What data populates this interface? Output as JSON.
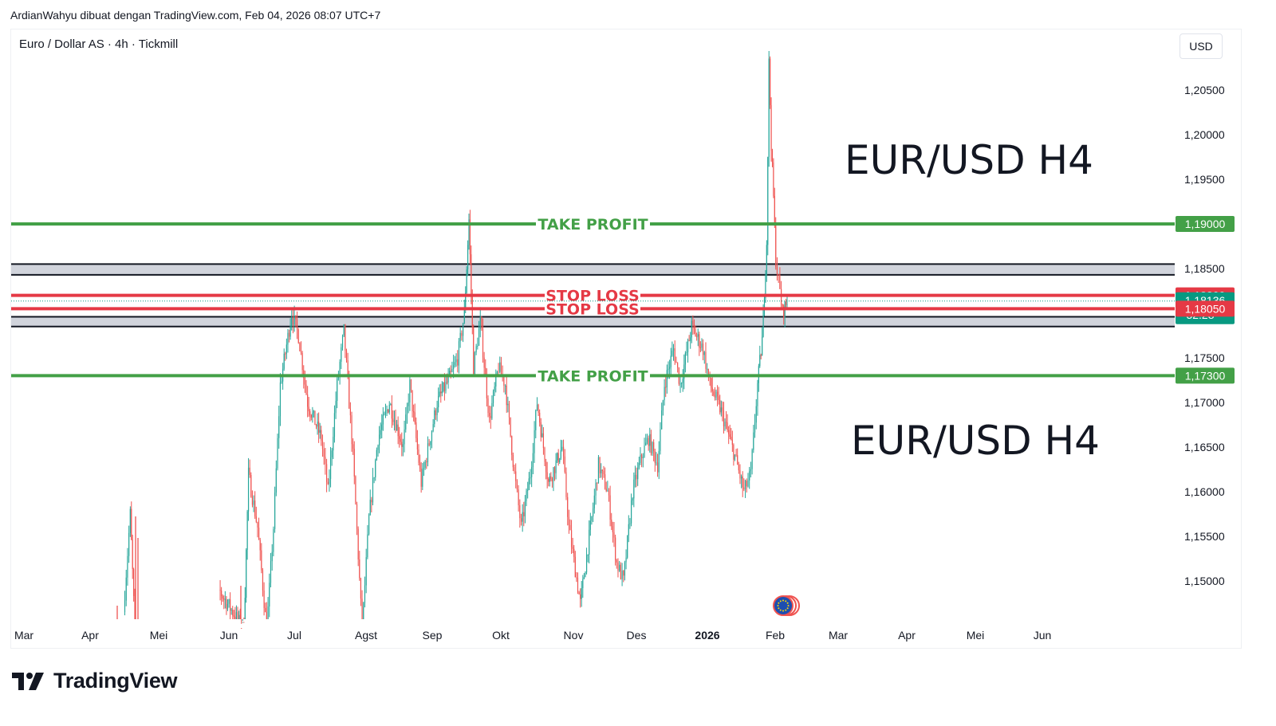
{
  "header": {
    "attribution": "ArdianWahyu dibuat dengan TradingView.com, Feb 04, 2026 08:07 UTC+7",
    "symbol": "Euro / Dollar AS · 4h · Tickmill",
    "currency": "USD"
  },
  "brand": {
    "name": "TradingView",
    "icon": "tradingview-logo-icon"
  },
  "colors": {
    "green": "#43a047",
    "red": "#e53945",
    "up": "#26a69a",
    "down": "#ef5350",
    "zone": "#d1d4dc",
    "teal_tag": "#089981"
  },
  "chart_data": {
    "type": "candlestick",
    "timeframe": "4h",
    "price_range": [
      1.1445,
      1.2095
    ],
    "x_axis_labels": [
      "Mar",
      "Apr",
      "Mei",
      "Jun",
      "Jul",
      "Agst",
      "Sep",
      "Okt",
      "Nov",
      "Des",
      "2026",
      "Feb",
      "Mar",
      "Apr",
      "Mei",
      "Jun"
    ],
    "price_ticks": [
      "1,20500",
      "1,20000",
      "1,19500",
      "1,18500",
      "1,17500",
      "1,17000",
      "1,16500",
      "1,16000",
      "1,15500",
      "1,15000"
    ],
    "levels": [
      {
        "label": "TAKE PROFIT",
        "price": 1.19,
        "price_label": "1,19000",
        "color": "#43a047",
        "kind": "take_profit"
      },
      {
        "label": "STOP LOSS",
        "price": 1.182,
        "price_label": "1,18200",
        "color": "#e53945",
        "kind": "stop_loss"
      },
      {
        "label": "STOP LOSS",
        "price": 1.1805,
        "price_label": "1,18050",
        "color": "#e53945",
        "kind": "stop_loss"
      },
      {
        "label": "TAKE PROFIT",
        "price": 1.173,
        "price_label": "1,17300",
        "color": "#43a047",
        "kind": "take_profit"
      }
    ],
    "zones": [
      {
        "top": 1.1855,
        "bottom": 1.1843
      },
      {
        "top": 1.1796,
        "bottom": 1.1785
      }
    ],
    "current_price": {
      "label": "1,18136",
      "price": 1.18136,
      "countdown": "52:28"
    },
    "annotations": [
      {
        "text": "EUR/USD H4",
        "anchor": "upper-right"
      },
      {
        "text": "EUR/USD H4",
        "anchor": "lower-right"
      }
    ],
    "path_points": [
      [
        "2025-04-18",
        1.1465
      ],
      [
        "2025-04-21",
        1.1575
      ],
      [
        "2025-04-23",
        1.1445
      ],
      [
        "2025-05-30",
        1.149
      ],
      [
        "2025-06-10",
        1.1445
      ],
      [
        "2025-06-12",
        1.162
      ],
      [
        "2025-06-16",
        1.156
      ],
      [
        "2025-06-20",
        1.1445
      ],
      [
        "2025-06-23",
        1.156
      ],
      [
        "2025-06-26",
        1.172
      ],
      [
        "2025-07-01",
        1.18
      ],
      [
        "2025-07-04",
        1.1775
      ],
      [
        "2025-07-08",
        1.17
      ],
      [
        "2025-07-14",
        1.166
      ],
      [
        "2025-07-17",
        1.16
      ],
      [
        "2025-07-21",
        1.172
      ],
      [
        "2025-07-24",
        1.178
      ],
      [
        "2025-07-28",
        1.164
      ],
      [
        "2025-08-01",
        1.1445
      ],
      [
        "2025-08-04",
        1.157
      ],
      [
        "2025-08-08",
        1.166
      ],
      [
        "2025-08-13",
        1.17
      ],
      [
        "2025-08-19",
        1.165
      ],
      [
        "2025-08-22",
        1.172
      ],
      [
        "2025-08-27",
        1.161
      ],
      [
        "2025-09-03",
        1.17
      ],
      [
        "2025-09-09",
        1.173
      ],
      [
        "2025-09-12",
        1.175
      ],
      [
        "2025-09-15",
        1.18
      ],
      [
        "2025-09-17",
        1.1905
      ],
      [
        "2025-09-19",
        1.174
      ],
      [
        "2025-09-22",
        1.179
      ],
      [
        "2025-09-26",
        1.168
      ],
      [
        "2025-09-30",
        1.174
      ],
      [
        "2025-10-03",
        1.172
      ],
      [
        "2025-10-07",
        1.162
      ],
      [
        "2025-10-10",
        1.156
      ],
      [
        "2025-10-14",
        1.162
      ],
      [
        "2025-10-17",
        1.17
      ],
      [
        "2025-10-22",
        1.161
      ],
      [
        "2025-10-28",
        1.165
      ],
      [
        "2025-10-31",
        1.156
      ],
      [
        "2025-11-05",
        1.1475
      ],
      [
        "2025-11-10",
        1.157
      ],
      [
        "2025-11-13",
        1.163
      ],
      [
        "2025-11-17",
        1.16
      ],
      [
        "2025-11-21",
        1.152
      ],
      [
        "2025-11-24",
        1.15
      ],
      [
        "2025-11-28",
        1.16
      ],
      [
        "2025-12-02",
        1.164
      ],
      [
        "2025-12-05",
        1.166
      ],
      [
        "2025-12-09",
        1.163
      ],
      [
        "2025-12-12",
        1.172
      ],
      [
        "2025-12-16",
        1.176
      ],
      [
        "2025-12-19",
        1.172
      ],
      [
        "2025-12-24",
        1.1785
      ],
      [
        "2025-12-29",
        1.176
      ],
      [
        "2026-01-01",
        1.172
      ],
      [
        "2026-01-06",
        1.169
      ],
      [
        "2026-01-12",
        1.164
      ],
      [
        "2026-01-16",
        1.16
      ],
      [
        "2026-01-19",
        1.162
      ],
      [
        "2026-01-22",
        1.172
      ],
      [
        "2026-01-24",
        1.177
      ],
      [
        "2026-01-26",
        1.188
      ],
      [
        "2026-01-27",
        1.208
      ],
      [
        "2026-01-28",
        1.199
      ],
      [
        "2026-01-29",
        1.193
      ],
      [
        "2026-01-30",
        1.186
      ],
      [
        "2026-02-02",
        1.18
      ],
      [
        "2026-02-04",
        1.18136
      ]
    ]
  }
}
